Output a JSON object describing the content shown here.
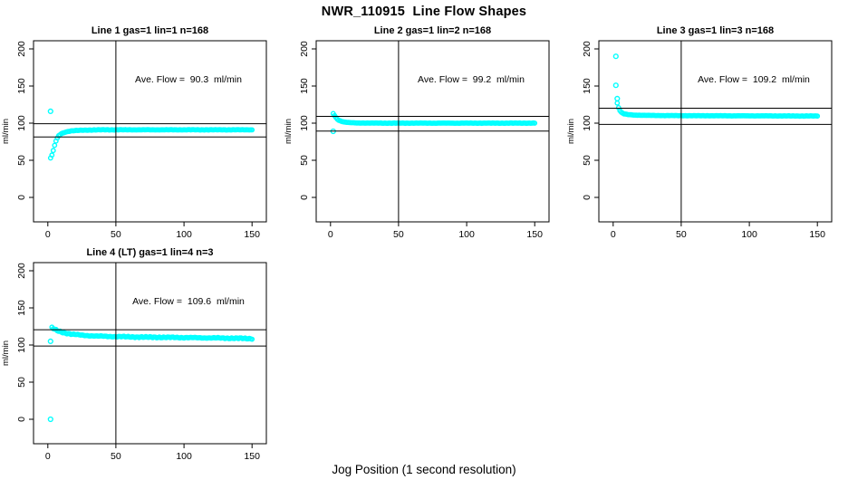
{
  "figure": {
    "title": "NWR_110915  Line Flow Shapes",
    "xlabel": "Jog Position (1 second resolution)"
  },
  "colors": {
    "points": "#00FFFF",
    "axis": "#000000"
  },
  "chart_data": [
    {
      "type": "scatter",
      "title": "Line 1 gas=1 lin=1 n=168",
      "annotation": "Ave. Flow =  90.3  ml/min",
      "ave_flow_ml_min": 90.3,
      "ylabel": "ml/min",
      "xticks": [
        0,
        50,
        100,
        150
      ],
      "yticks": [
        0,
        50,
        100,
        150,
        200
      ],
      "xlim": [
        -10.5,
        160.5
      ],
      "ylim": [
        -33,
        211
      ],
      "vline_x": 50,
      "hlines": [
        99.3,
        81.3
      ],
      "x_end": 150,
      "trend_anchors": [
        [
          2,
          53
        ],
        [
          3,
          57
        ],
        [
          4,
          63
        ],
        [
          5,
          70
        ],
        [
          6,
          76
        ],
        [
          7,
          80
        ],
        [
          8,
          83
        ],
        [
          10,
          86
        ],
        [
          13,
          88
        ],
        [
          17,
          89.5
        ],
        [
          25,
          90.5
        ],
        [
          40,
          91
        ],
        [
          150,
          91
        ]
      ],
      "outliers": [
        [
          2,
          116
        ]
      ],
      "wiggle": 0.3
    },
    {
      "type": "scatter",
      "title": "Line 2 gas=1 lin=2 n=168",
      "annotation": "Ave. Flow =  99.2  ml/min",
      "ave_flow_ml_min": 99.2,
      "ylabel": "ml/min",
      "xticks": [
        0,
        50,
        100,
        150
      ],
      "yticks": [
        0,
        50,
        100,
        150,
        200
      ],
      "xlim": [
        -10.5,
        160.5
      ],
      "ylim": [
        -33,
        211
      ],
      "vline_x": 50,
      "hlines": [
        109.1,
        89.3
      ],
      "x_end": 150,
      "trend_anchors": [
        [
          2,
          113
        ],
        [
          3,
          110
        ],
        [
          4,
          107.5
        ],
        [
          5,
          105.5
        ],
        [
          6,
          104
        ],
        [
          8,
          102.5
        ],
        [
          10,
          101.5
        ],
        [
          14,
          100.7
        ],
        [
          20,
          100.2
        ],
        [
          40,
          100
        ],
        [
          150,
          100
        ]
      ],
      "outliers": [
        [
          2,
          89
        ]
      ],
      "wiggle": 0.25
    },
    {
      "type": "scatter",
      "title": "Line 3 gas=1 lin=3 n=168",
      "annotation": "Ave. Flow =  109.2  ml/min",
      "ave_flow_ml_min": 109.2,
      "ylabel": "ml/min",
      "xticks": [
        0,
        50,
        100,
        150
      ],
      "yticks": [
        0,
        50,
        100,
        150,
        200
      ],
      "xlim": [
        -10.5,
        160.5
      ],
      "ylim": [
        -33,
        211
      ],
      "vline_x": 50,
      "hlines": [
        120.1,
        98.3
      ],
      "x_end": 150,
      "trend_anchors": [
        [
          3,
          127
        ],
        [
          4,
          121
        ],
        [
          5,
          117
        ],
        [
          6,
          114.5
        ],
        [
          8,
          112.5
        ],
        [
          11,
          111.5
        ],
        [
          16,
          110.8
        ],
        [
          30,
          110.3
        ],
        [
          60,
          110
        ],
        [
          150,
          109.6
        ]
      ],
      "outliers": [
        [
          2,
          190
        ],
        [
          2,
          151
        ],
        [
          3,
          133
        ]
      ],
      "wiggle": 0.25
    },
    {
      "type": "scatter",
      "title": "Line 4 (LT) gas=1 lin=4 n=3",
      "annotation": "Ave. Flow =  109.6  ml/min",
      "ave_flow_ml_min": 109.6,
      "ylabel": "ml/min",
      "xticks": [
        0,
        50,
        100,
        150
      ],
      "yticks": [
        0,
        50,
        100,
        150,
        200
      ],
      "xlim": [
        -10.5,
        160.5
      ],
      "ylim": [
        -33,
        211
      ],
      "vline_x": 50,
      "hlines": [
        120.6,
        98.6
      ],
      "x_end": 150,
      "trend_anchors": [
        [
          3,
          123.5
        ],
        [
          5,
          121
        ],
        [
          8,
          118.5
        ],
        [
          12,
          116.5
        ],
        [
          18,
          114.5
        ],
        [
          26,
          113
        ],
        [
          36,
          112
        ],
        [
          50,
          111.3
        ],
        [
          70,
          110.6
        ],
        [
          100,
          110
        ],
        [
          130,
          109.3
        ],
        [
          150,
          108.6
        ]
      ],
      "outliers": [
        [
          2,
          0
        ],
        [
          2,
          105
        ]
      ],
      "wiggle": 0.8
    }
  ]
}
